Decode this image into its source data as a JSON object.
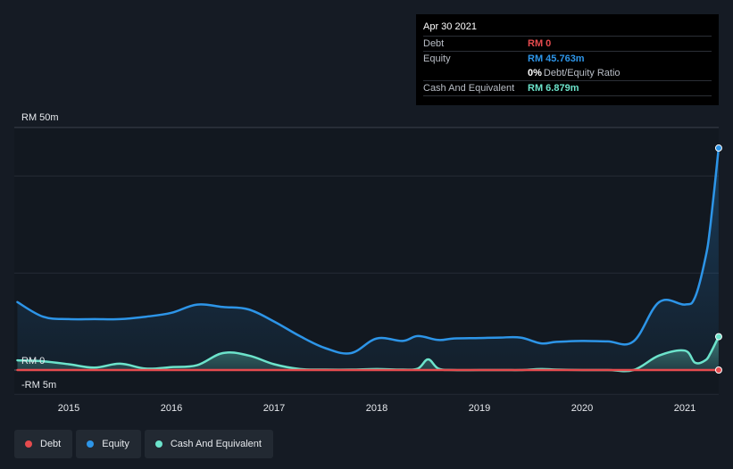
{
  "tooltip": {
    "date": "Apr 30 2021",
    "rows": [
      {
        "label": "Debt",
        "value": "RM 0",
        "color": "#e64b4e"
      },
      {
        "label": "Equity",
        "value": "RM 45.763m",
        "color": "#2d95e8"
      },
      {
        "label": "",
        "value": "0%",
        "sub": "Debt/Equity Ratio",
        "color": "#ffffff"
      },
      {
        "label": "Cash And Equivalent",
        "value": "RM 6.879m",
        "color": "#6ce3cb"
      }
    ]
  },
  "legend": [
    {
      "label": "Debt",
      "color": "#e64b4e"
    },
    {
      "label": "Equity",
      "color": "#2d95e8"
    },
    {
      "label": "Cash And Equivalent",
      "color": "#6ce3cb"
    }
  ],
  "chart_data": {
    "type": "area",
    "x_ticks": [
      "2015",
      "2016",
      "2017",
      "2018",
      "2019",
      "2020",
      "2021"
    ],
    "y_ticks": [
      "RM 50m",
      "RM 0",
      "-RM 5m"
    ],
    "ylim": [
      -5,
      50
    ],
    "xlim": [
      2014.25,
      2021.35
    ],
    "series": [
      {
        "name": "Debt",
        "color": "#e64b4e",
        "x": [
          2014.5,
          2021.33
        ],
        "y": [
          0,
          0
        ]
      },
      {
        "name": "Equity",
        "color": "#2d95e8",
        "x": [
          2014.5,
          2014.75,
          2015.0,
          2015.25,
          2015.5,
          2015.75,
          2016.0,
          2016.25,
          2016.5,
          2016.75,
          2017.0,
          2017.25,
          2017.5,
          2017.75,
          2018.0,
          2018.25,
          2018.4,
          2018.6,
          2018.75,
          2019.0,
          2019.2,
          2019.4,
          2019.6,
          2019.75,
          2020.0,
          2020.25,
          2020.5,
          2020.75,
          2021.0,
          2021.1,
          2021.2,
          2021.25,
          2021.33
        ],
        "y": [
          14.0,
          11.0,
          10.5,
          10.5,
          10.5,
          11.0,
          11.8,
          13.5,
          13.0,
          12.5,
          10.0,
          7.0,
          4.5,
          3.5,
          6.5,
          6.0,
          7.0,
          6.2,
          6.5,
          6.6,
          6.7,
          6.7,
          5.5,
          5.8,
          6.0,
          5.9,
          5.9,
          14.0,
          13.5,
          15.0,
          23.0,
          30.0,
          45.763
        ]
      },
      {
        "name": "Cash And Equivalent",
        "color": "#6ce3cb",
        "x": [
          2014.5,
          2014.75,
          2015.0,
          2015.25,
          2015.5,
          2015.75,
          2016.0,
          2016.25,
          2016.5,
          2016.75,
          2017.0,
          2017.25,
          2017.5,
          2017.75,
          2018.0,
          2018.25,
          2018.4,
          2018.5,
          2018.6,
          2018.75,
          2019.0,
          2019.25,
          2019.4,
          2019.6,
          2019.75,
          2020.0,
          2020.25,
          2020.5,
          2020.75,
          2021.0,
          2021.1,
          2021.2,
          2021.25,
          2021.33
        ],
        "y": [
          2.0,
          1.8,
          1.2,
          0.5,
          1.3,
          0.3,
          0.6,
          1.0,
          3.5,
          3.0,
          1.2,
          0.2,
          0.1,
          0.1,
          0.2,
          0.1,
          0.3,
          2.2,
          0.3,
          0.0,
          0.0,
          0.0,
          0.0,
          0.2,
          0.1,
          0.0,
          0.0,
          0.0,
          3.0,
          4.0,
          1.5,
          2.0,
          3.5,
          6.879
        ]
      }
    ]
  }
}
